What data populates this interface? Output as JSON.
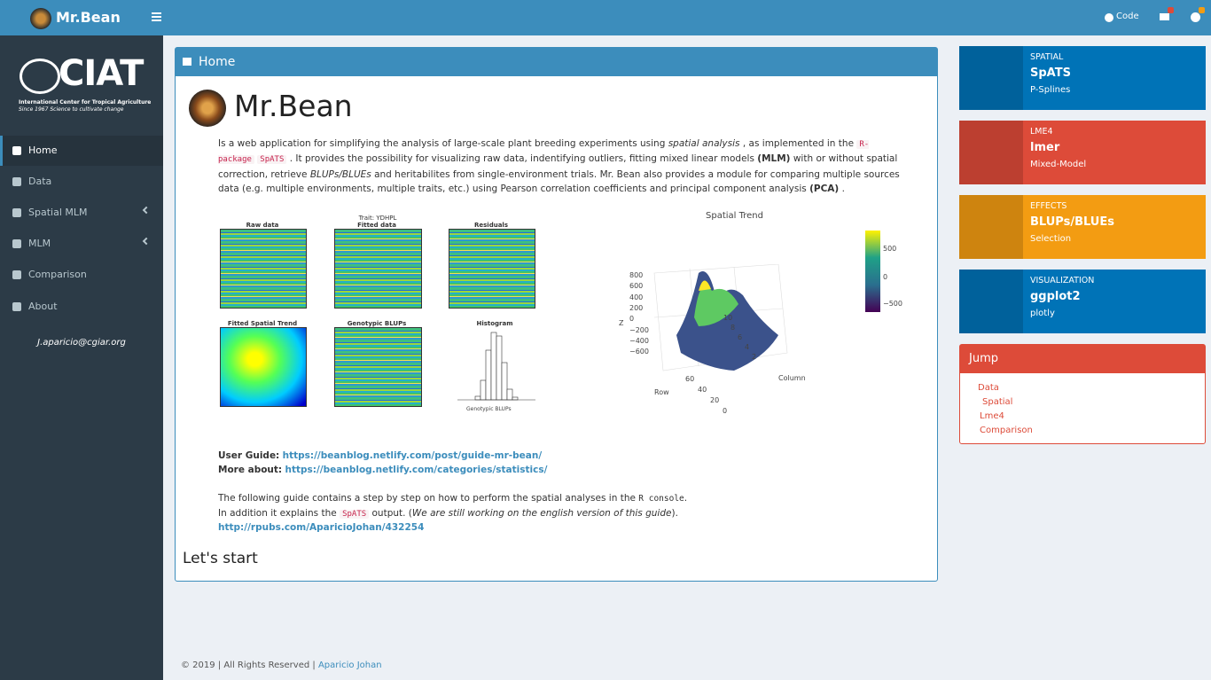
{
  "navbar": {
    "brand": "Mr.Bean",
    "code": "Code"
  },
  "sidebar": {
    "logo": "CIAT",
    "logo_line1": "International Center for Tropical Agriculture",
    "logo_line2": "Since 1967 Science to cultivate change",
    "menu": [
      "Home",
      "Data",
      "Spatial MLM",
      "MLM",
      "Comparison",
      "About"
    ],
    "email": "J.aparicio@cgiar.org"
  },
  "main": {
    "box_title": "Home",
    "app_title": "Mr.Bean",
    "intro": [
      "Is a web application for simplifying the analysis of large-scale plant breeding experiments using",
      "spatial analysis",
      ", as implemented in the",
      "R-package",
      "SpATS",
      ". It provides the possibility for visualizing raw data, indentifying outliers, fitting mixed linear models",
      "(MLM)",
      "with or without spatial correction, retrieve",
      "BLUPs/BLUEs",
      "and heritabilites from single-environment trials. Mr. Bean also provides a module for comparing multiple sources data (e.g. multiple environments, multiple traits, etc.) using Pearson correlation coefficients and principal component analysis",
      "(PCA)",
      "."
    ],
    "figure_left": {
      "trait": "Trait: YDHPL",
      "panels": [
        "Raw data",
        "Fitted data",
        "Residuals",
        "Fitted Spatial Trend",
        "Genotypic BLUPs",
        "Histogram"
      ],
      "hist_xlabel": "Genotypic BLUPs"
    },
    "figure_right": {
      "title": "Spatial Trend",
      "z_label": "Z",
      "row_label": "Row",
      "column_label": "Column",
      "z_ticks": [
        "800",
        "600",
        "400",
        "200",
        "0",
        "−200",
        "−400",
        "−600"
      ],
      "row_ticks": [
        "60",
        "40",
        "20",
        "0"
      ],
      "column_ticks": [
        "2",
        "4",
        "6",
        "8",
        "10"
      ],
      "colorbar_ticks": [
        "500",
        "0",
        "−500"
      ]
    },
    "user_guide_label": "User Guide:",
    "user_guide_link": "https://beanblog.netlify.com/post/guide-mr-bean/",
    "more_about_label": "More about:",
    "more_about_link": "https://beanblog.netlify.com/categories/statistics/",
    "guide": [
      "The following guide contains a step by step on how to perform the spatial analyses in the",
      "R console",
      ".",
      "In addition it explains the",
      "SpATS",
      "output. (",
      "We are still working on the english version of this guide",
      ")."
    ],
    "rpubs_link": "http://rpubs.com/AparicioJohan/432254",
    "lets_start": "Let's start"
  },
  "info_boxes": [
    {
      "label": "SPATIAL",
      "title": "SpATS",
      "subtitle": "P-Splines"
    },
    {
      "label": "LME4",
      "title": "lmer",
      "subtitle": "Mixed-Model"
    },
    {
      "label": "EFFECTS",
      "title": "BLUPs/BLUEs",
      "subtitle": "Selection"
    },
    {
      "label": "VISUALIZATION",
      "title": "ggplot2",
      "subtitle": "plotly"
    }
  ],
  "jump": {
    "title": "Jump",
    "links": [
      "Data",
      "Spatial",
      "Lme4",
      "Comparison"
    ]
  },
  "footer": {
    "text": "© 2019 | All Rights Reserved |",
    "author": "Aparicio Johan"
  }
}
